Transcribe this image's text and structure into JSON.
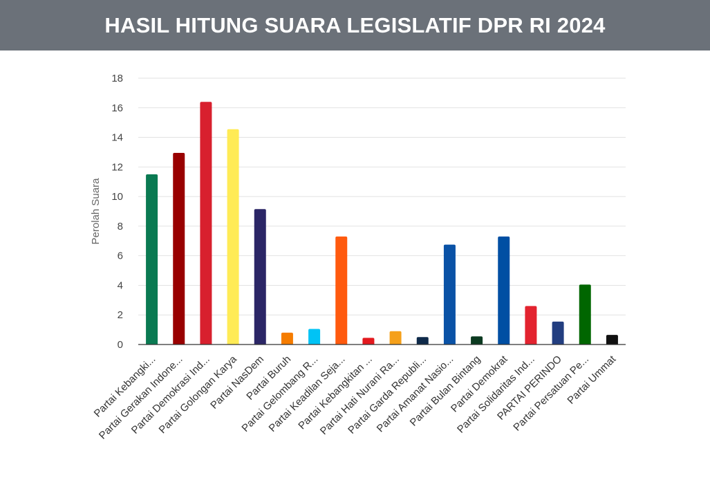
{
  "header": {
    "title": "HASIL HITUNG SUARA LEGISLATIF DPR RI 2024"
  },
  "chart_data": {
    "type": "bar",
    "title": "HASIL HITUNG SUARA LEGISLATIF DPR RI 2024",
    "xlabel": "",
    "ylabel": "Perolah Suara",
    "ylim": [
      0,
      18
    ],
    "yticks": [
      0,
      2,
      4,
      6,
      8,
      10,
      12,
      14,
      16,
      18
    ],
    "grid": true,
    "legend": "none",
    "categories": [
      "Partai Kebangki...",
      "Partai Gerakan Indone...",
      "Partai Demokrasi Ind...",
      "Partai Golongan Karya",
      "Partai NasDem",
      "Partai Buruh",
      "Partai Gelombang R...",
      "Partai Keadilan Seja...",
      "Partai Kebangkitan ...",
      "Partai Hati Nurani Ra...",
      "Partai Garda Republi...",
      "Partai Amanat Nasio...",
      "Partai Bulan Bintang",
      "Partai Demokrat",
      "Partai Solidaritas Ind...",
      "PARTAI PERINDO",
      "Partai Persatuan Pe...",
      "Partai Ummat"
    ],
    "values": [
      11.5,
      12.95,
      16.4,
      14.55,
      9.15,
      0.8,
      1.05,
      7.3,
      0.45,
      0.9,
      0.5,
      6.75,
      0.55,
      7.3,
      2.6,
      1.55,
      4.05,
      0.65
    ],
    "colors": [
      "#0a7a52",
      "#990000",
      "#d8202e",
      "#ffeb55",
      "#2b2666",
      "#f57c00",
      "#00c3f5",
      "#ff5a0e",
      "#e3191e",
      "#f5a01a",
      "#0e2a4a",
      "#0a52a6",
      "#0b3a20",
      "#004fa3",
      "#e3232f",
      "#223e80",
      "#006600",
      "#111111"
    ]
  }
}
